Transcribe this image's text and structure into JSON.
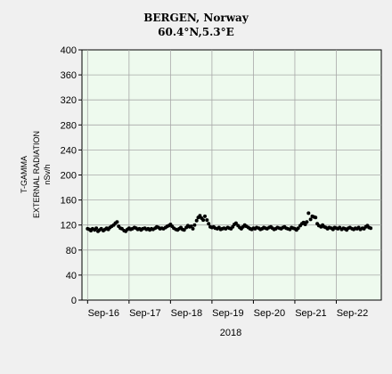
{
  "chart_data": {
    "type": "scatter",
    "title": "BERGEN, Norway",
    "subtitle": "60.4°N,5.3°E",
    "ylabel_lines": [
      "T-GAMMA",
      "EXTERNAL RADIATION",
      "nSv/h"
    ],
    "xlabel": "2018",
    "ylim": [
      0,
      400
    ],
    "yticks": [
      0,
      40,
      80,
      120,
      160,
      200,
      240,
      280,
      320,
      360,
      400
    ],
    "xlim": [
      -0.05,
      7.0
    ],
    "xticks": [
      {
        "pos": 0,
        "label": "Sep-16"
      },
      {
        "pos": 1,
        "label": "Sep-17"
      },
      {
        "pos": 2,
        "label": "Sep-18"
      },
      {
        "pos": 3,
        "label": "Sep-19"
      },
      {
        "pos": 4,
        "label": "Sep-20"
      },
      {
        "pos": 5,
        "label": "Sep-21"
      },
      {
        "pos": 6,
        "label": "Sep-22"
      }
    ],
    "grid": true,
    "colors": {
      "plot_bg": "#eefaee",
      "grid": "#a8a8a8",
      "marker": "#000000",
      "page_bg": "#f0f0f0"
    },
    "points": [
      [
        0.0,
        114
      ],
      [
        0.04,
        113
      ],
      [
        0.08,
        111
      ],
      [
        0.12,
        114
      ],
      [
        0.17,
        112
      ],
      [
        0.21,
        115
      ],
      [
        0.25,
        110
      ],
      [
        0.29,
        112
      ],
      [
        0.33,
        114
      ],
      [
        0.38,
        111
      ],
      [
        0.42,
        113
      ],
      [
        0.46,
        115
      ],
      [
        0.5,
        113
      ],
      [
        0.54,
        116
      ],
      [
        0.58,
        118
      ],
      [
        0.63,
        120
      ],
      [
        0.67,
        123
      ],
      [
        0.71,
        125
      ],
      [
        0.75,
        118
      ],
      [
        0.79,
        115
      ],
      [
        0.83,
        114
      ],
      [
        0.88,
        111
      ],
      [
        0.92,
        110
      ],
      [
        0.96,
        113
      ],
      [
        1.0,
        115
      ],
      [
        1.04,
        113
      ],
      [
        1.08,
        114
      ],
      [
        1.13,
        116
      ],
      [
        1.17,
        115
      ],
      [
        1.21,
        113
      ],
      [
        1.25,
        114
      ],
      [
        1.29,
        112
      ],
      [
        1.33,
        114
      ],
      [
        1.38,
        115
      ],
      [
        1.42,
        113
      ],
      [
        1.46,
        114
      ],
      [
        1.5,
        112
      ],
      [
        1.54,
        114
      ],
      [
        1.58,
        113
      ],
      [
        1.63,
        115
      ],
      [
        1.67,
        117
      ],
      [
        1.71,
        116
      ],
      [
        1.75,
        114
      ],
      [
        1.79,
        115
      ],
      [
        1.83,
        114
      ],
      [
        1.88,
        116
      ],
      [
        1.92,
        118
      ],
      [
        1.96,
        119
      ],
      [
        2.0,
        121
      ],
      [
        2.04,
        118
      ],
      [
        2.08,
        115
      ],
      [
        2.13,
        113
      ],
      [
        2.17,
        112
      ],
      [
        2.21,
        114
      ],
      [
        2.25,
        116
      ],
      [
        2.29,
        113
      ],
      [
        2.33,
        112
      ],
      [
        2.38,
        116
      ],
      [
        2.42,
        119
      ],
      [
        2.46,
        117
      ],
      [
        2.5,
        118
      ],
      [
        2.54,
        114
      ],
      [
        2.58,
        120
      ],
      [
        2.63,
        127
      ],
      [
        2.67,
        132
      ],
      [
        2.71,
        135
      ],
      [
        2.75,
        131
      ],
      [
        2.79,
        128
      ],
      [
        2.83,
        134
      ],
      [
        2.88,
        128
      ],
      [
        2.92,
        122
      ],
      [
        2.96,
        117
      ],
      [
        3.0,
        116
      ],
      [
        3.04,
        117
      ],
      [
        3.08,
        115
      ],
      [
        3.13,
        114
      ],
      [
        3.17,
        116
      ],
      [
        3.21,
        113
      ],
      [
        3.25,
        114
      ],
      [
        3.29,
        115
      ],
      [
        3.33,
        114
      ],
      [
        3.38,
        116
      ],
      [
        3.42,
        115
      ],
      [
        3.46,
        114
      ],
      [
        3.5,
        117
      ],
      [
        3.54,
        121
      ],
      [
        3.58,
        123
      ],
      [
        3.63,
        119
      ],
      [
        3.67,
        116
      ],
      [
        3.71,
        114
      ],
      [
        3.75,
        117
      ],
      [
        3.79,
        120
      ],
      [
        3.83,
        118
      ],
      [
        3.88,
        116
      ],
      [
        3.92,
        114
      ],
      [
        3.96,
        113
      ],
      [
        4.0,
        115
      ],
      [
        4.04,
        114
      ],
      [
        4.08,
        116
      ],
      [
        4.13,
        115
      ],
      [
        4.17,
        113
      ],
      [
        4.21,
        114
      ],
      [
        4.25,
        116
      ],
      [
        4.29,
        115
      ],
      [
        4.33,
        114
      ],
      [
        4.38,
        116
      ],
      [
        4.42,
        117
      ],
      [
        4.46,
        115
      ],
      [
        4.5,
        113
      ],
      [
        4.54,
        114
      ],
      [
        4.58,
        116
      ],
      [
        4.63,
        115
      ],
      [
        4.67,
        114
      ],
      [
        4.71,
        116
      ],
      [
        4.75,
        117
      ],
      [
        4.79,
        115
      ],
      [
        4.83,
        114
      ],
      [
        4.88,
        113
      ],
      [
        4.92,
        116
      ],
      [
        4.96,
        115
      ],
      [
        5.0,
        114
      ],
      [
        5.04,
        112
      ],
      [
        5.08,
        115
      ],
      [
        5.13,
        119
      ],
      [
        5.17,
        122
      ],
      [
        5.21,
        124
      ],
      [
        5.25,
        121
      ],
      [
        5.29,
        125
      ],
      [
        5.33,
        139
      ],
      [
        5.38,
        129
      ],
      [
        5.42,
        134
      ],
      [
        5.46,
        133
      ],
      [
        5.5,
        132
      ],
      [
        5.54,
        122
      ],
      [
        5.58,
        119
      ],
      [
        5.63,
        117
      ],
      [
        5.67,
        120
      ],
      [
        5.71,
        117
      ],
      [
        5.75,
        116
      ],
      [
        5.79,
        114
      ],
      [
        5.83,
        116
      ],
      [
        5.88,
        115
      ],
      [
        5.92,
        113
      ],
      [
        5.96,
        116
      ],
      [
        6.0,
        115
      ],
      [
        6.04,
        114
      ],
      [
        6.08,
        116
      ],
      [
        6.13,
        113
      ],
      [
        6.17,
        115
      ],
      [
        6.21,
        114
      ],
      [
        6.25,
        112
      ],
      [
        6.29,
        115
      ],
      [
        6.33,
        116
      ],
      [
        6.38,
        114
      ],
      [
        6.42,
        113
      ],
      [
        6.46,
        115
      ],
      [
        6.5,
        114
      ],
      [
        6.54,
        116
      ],
      [
        6.58,
        113
      ],
      [
        6.63,
        115
      ],
      [
        6.67,
        114
      ],
      [
        6.71,
        117
      ],
      [
        6.75,
        119
      ],
      [
        6.79,
        116
      ],
      [
        6.83,
        115
      ]
    ]
  }
}
